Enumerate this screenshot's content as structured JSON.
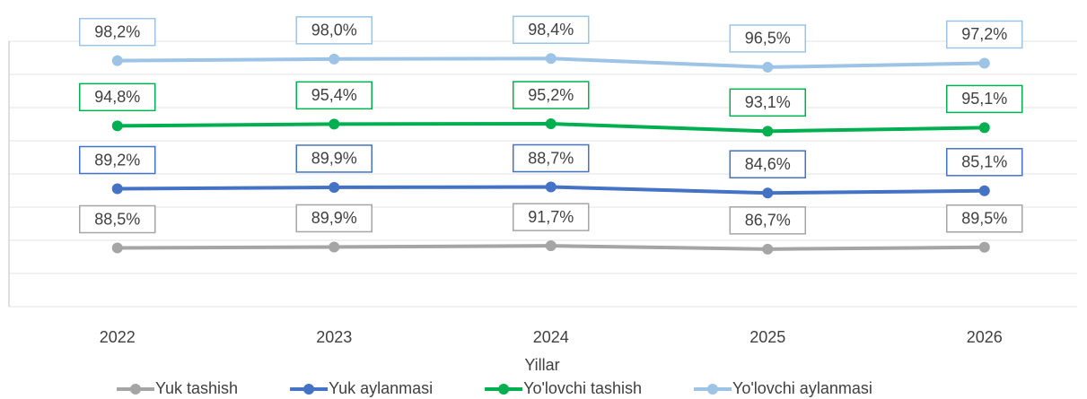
{
  "chart_data": {
    "type": "line",
    "stacked": true,
    "x_label": "Yillar",
    "categories": [
      "2022",
      "2023",
      "2024",
      "2025",
      "2026"
    ],
    "series": [
      {
        "name": "Yuk tashish",
        "color": "#a5a5a5",
        "values": [
          88.5,
          89.9,
          91.7,
          86.7,
          89.5
        ],
        "value_labels": [
          "88,5%",
          "89,9%",
          "91,7%",
          "86,7%",
          "89,5%"
        ]
      },
      {
        "name": "Yuk aylanmasi",
        "color": "#4472c4",
        "values": [
          89.2,
          89.9,
          88.7,
          84.6,
          85.1
        ],
        "value_labels": [
          "89,2%",
          "89,9%",
          "88,7%",
          "84,6%",
          "85,1%"
        ]
      },
      {
        "name": "Yo'lovchi tashish",
        "color": "#00b050",
        "values": [
          94.8,
          95.4,
          95.2,
          93.1,
          95.1
        ],
        "value_labels": [
          "94,8%",
          "95,4%",
          "95,2%",
          "93,1%",
          "95,1%"
        ]
      },
      {
        "name": "Yo'lovchi aylanmasi",
        "color": "#9dc3e6",
        "values": [
          98.2,
          98.0,
          98.4,
          96.5,
          97.2
        ],
        "value_labels": [
          "98,2%",
          "98,0%",
          "98,4%",
          "96,5%",
          "97,2%"
        ]
      }
    ],
    "ylim": [
      0,
      400
    ],
    "yticks": [
      0,
      50,
      100,
      150,
      200,
      250,
      300,
      350,
      400
    ],
    "grid": true,
    "legend": "bottom"
  }
}
